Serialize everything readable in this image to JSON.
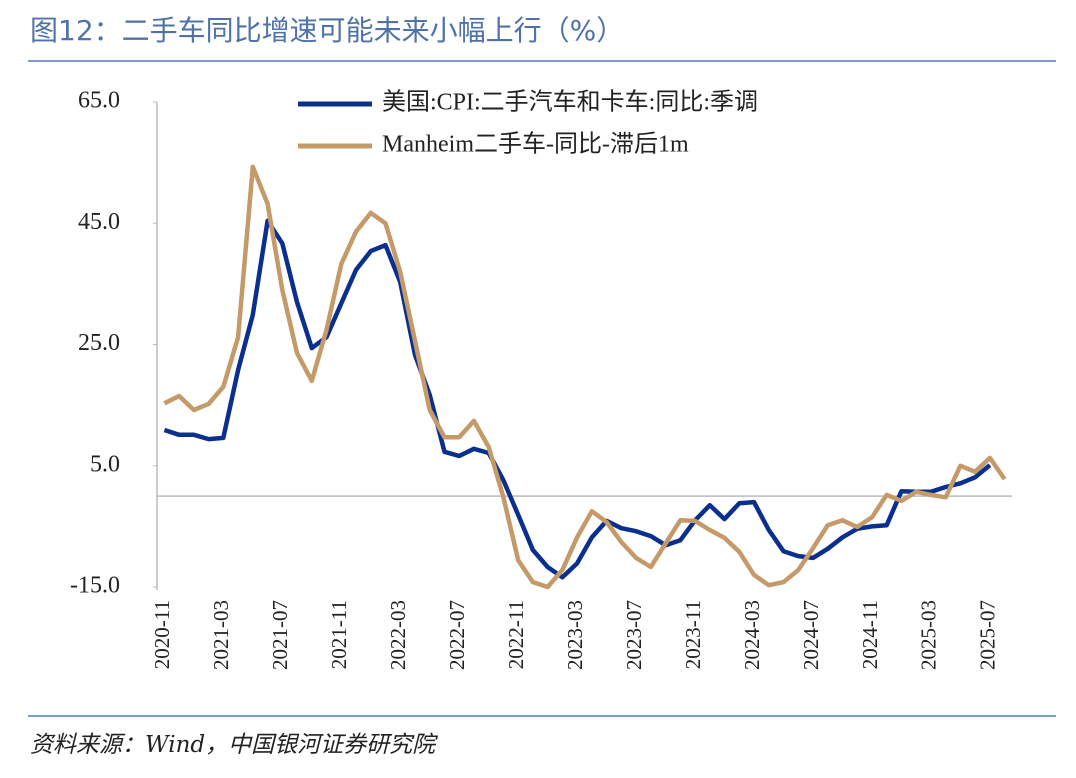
{
  "chart_data": {
    "type": "line",
    "title": "图12：二手车同比增速可能未来小幅上行（%）",
    "source": "资料来源：Wind，中国银河证券研究院",
    "categories": [
      "2020-11",
      null,
      null,
      null,
      "2021-03",
      null,
      null,
      null,
      "2021-07",
      null,
      null,
      null,
      "2021-11",
      null,
      null,
      null,
      "2022-03",
      null,
      null,
      null,
      "2022-07",
      null,
      null,
      null,
      "2022-11",
      null,
      null,
      null,
      "2023-03",
      null,
      null,
      null,
      "2023-07",
      null,
      null,
      null,
      "2023-11",
      null,
      null,
      null,
      "2024-03",
      null,
      null,
      null,
      "2024-07",
      null,
      null,
      null,
      "2024-11",
      null,
      null,
      null,
      "2025-03",
      null,
      null,
      null,
      "2025-07",
      null
    ],
    "series": [
      {
        "name": "美国:CPI:二手汽车和卡车:同比:季调",
        "color": "#0b2f8f",
        "values": [
          10.9,
          10.1,
          10.1,
          9.4,
          9.6,
          20.8,
          29.9,
          45.4,
          41.7,
          32.0,
          24.4,
          26.2,
          31.8,
          37.3,
          40.4,
          41.4,
          35.3,
          23.3,
          16.7,
          7.3,
          6.6,
          7.8,
          7.1,
          2.6,
          -3.1,
          -8.9,
          -11.7,
          -13.4,
          -11.1,
          -6.8,
          -4.1,
          -5.3,
          -5.8,
          -6.6,
          -8.1,
          -7.3,
          -4.0,
          -1.5,
          -3.8,
          -1.2,
          -1.0,
          -5.6,
          -9.1,
          -9.9,
          -10.2,
          -8.7,
          -6.8,
          -5.4,
          -5.0,
          -4.8,
          0.8,
          0.7,
          0.7,
          1.5,
          2.1,
          3.1,
          5.1,
          null
        ]
      },
      {
        "name": "Manheim二手车-同比-滞后1m",
        "color": "#c49a68",
        "values": [
          15.3,
          16.5,
          14.2,
          15.2,
          18.0,
          26.2,
          54.3,
          48.2,
          34.0,
          23.6,
          19.0,
          27.4,
          38.3,
          43.6,
          46.7,
          45.0,
          37.0,
          25.6,
          14.2,
          9.7,
          9.7,
          12.4,
          8.1,
          -0.2,
          -10.6,
          -14.2,
          -15.0,
          -12.2,
          -6.8,
          -2.5,
          -4.3,
          -7.6,
          -10.2,
          -11.7,
          -7.8,
          -4.0,
          -4.1,
          -5.6,
          -6.9,
          -9.2,
          -13.0,
          -14.7,
          -14.2,
          -12.2,
          -8.6,
          -4.8,
          -4.0,
          -5.1,
          -3.5,
          0.2,
          -0.8,
          0.7,
          0.2,
          -0.2,
          5.0,
          4.0,
          6.3,
          2.8
        ]
      }
    ],
    "ylim": [
      -15,
      65
    ],
    "yticks": [
      {
        "value": -15,
        "label": "-15.0"
      },
      {
        "value": 5,
        "label": "5.0"
      },
      {
        "value": 25,
        "label": "25.0"
      },
      {
        "value": 45,
        "label": "45.0"
      },
      {
        "value": 65,
        "label": "65.0"
      }
    ],
    "grid": false,
    "legend": "top"
  }
}
